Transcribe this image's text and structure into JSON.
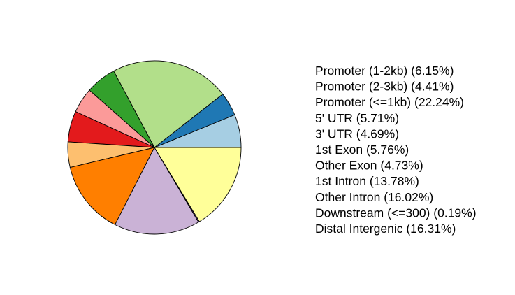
{
  "chart_data": {
    "type": "pie",
    "start_angle_deg": 0,
    "direction": "counterclockwise",
    "slices": [
      {
        "label": "Promoter (1-2kb) (6.15%)",
        "value": 6.15,
        "color": "#a6cee3"
      },
      {
        "label": "Promoter (2-3kb) (4.41%)",
        "value": 4.41,
        "color": "#1f78b4"
      },
      {
        "label": "Promoter (<=1kb) (22.24%)",
        "value": 22.24,
        "color": "#b2df8a"
      },
      {
        "label": "5' UTR (5.71%)",
        "value": 5.71,
        "color": "#33a02c"
      },
      {
        "label": "3' UTR (4.69%)",
        "value": 4.69,
        "color": "#fb9a99"
      },
      {
        "label": "1st Exon (5.76%)",
        "value": 5.76,
        "color": "#e31a1c"
      },
      {
        "label": "Other Exon (4.73%)",
        "value": 4.73,
        "color": "#fdbf6f"
      },
      {
        "label": "1st Intron (13.78%)",
        "value": 13.78,
        "color": "#ff7f00"
      },
      {
        "label": "Other Intron (16.02%)",
        "value": 16.02,
        "color": "#cab2d6"
      },
      {
        "label": "Downstream (<=300) (0.19%)",
        "value": 0.19,
        "color": "#6a3d9a"
      },
      {
        "label": "Distal Intergenic (16.31%)",
        "value": 16.31,
        "color": "#ffff99"
      }
    ]
  }
}
